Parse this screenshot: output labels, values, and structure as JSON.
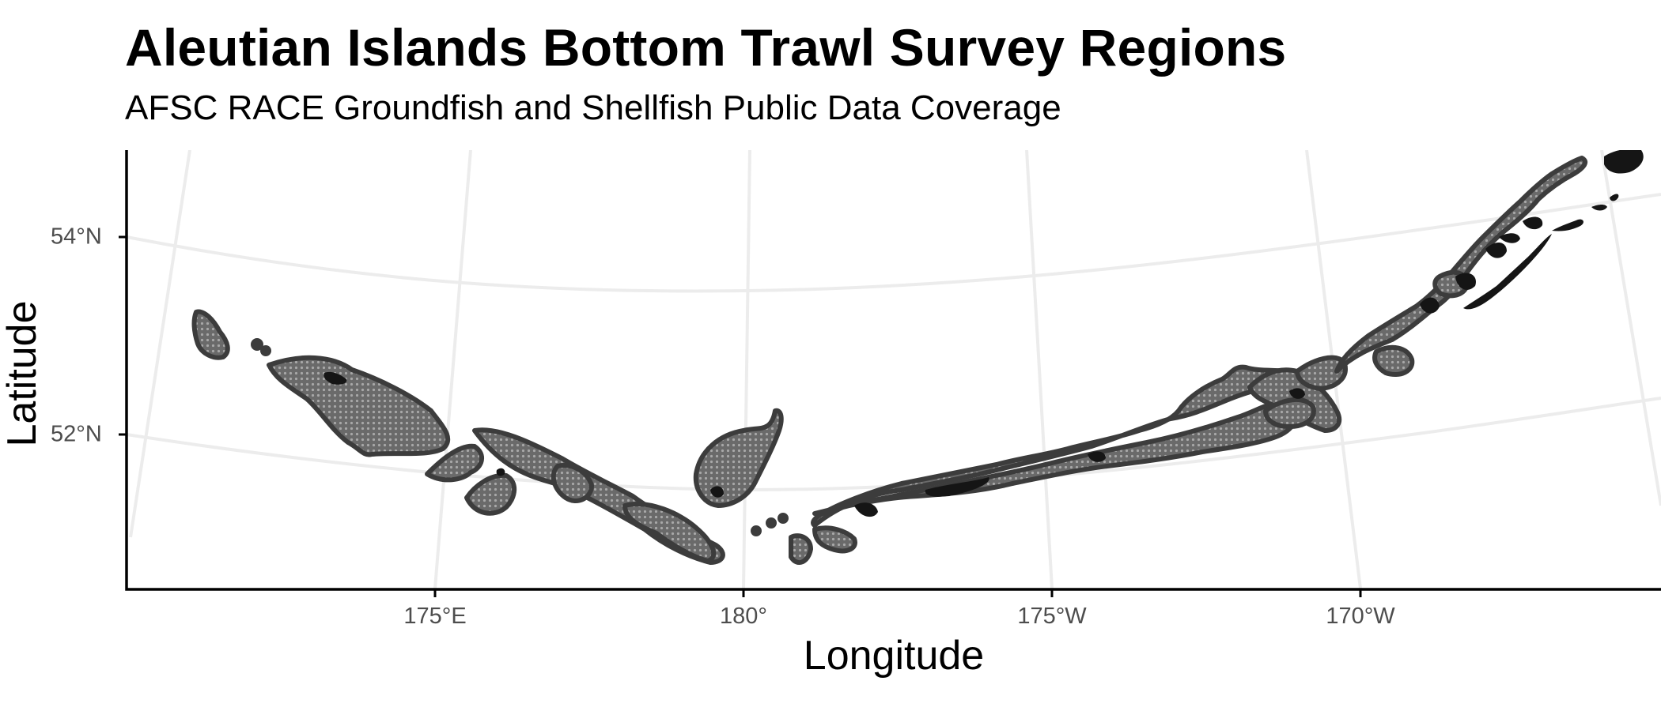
{
  "title": "Aleutian Islands Bottom Trawl Survey Regions",
  "subtitle": "AFSC RACE Groundfish and Shellfish Public Data Coverage",
  "axes": {
    "x_label": "Longitude",
    "y_label": "Latitude",
    "x_ticks": [
      "175°E",
      "180°",
      "175°W",
      "170°W"
    ],
    "y_ticks": [
      "54°N",
      "52°N"
    ]
  },
  "colors": {
    "survey_fill": "#3c3c3c",
    "inner_shallow": "#7a7a7a",
    "land": "#151515",
    "graticule": "#ececec",
    "axis": "#000000",
    "tick_text": "#4d4d4d"
  },
  "map_features": [
    "survey-area",
    "land-mass",
    "graticule-grid"
  ]
}
